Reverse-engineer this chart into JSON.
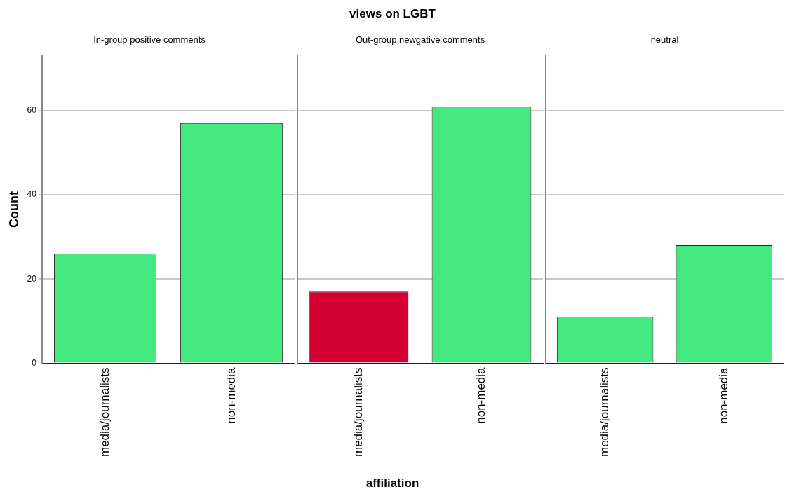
{
  "chart_data": [
    {
      "type": "bar",
      "subtitle": "In-group positive comments",
      "ylabel": "Count",
      "categories": [
        "media/journalists",
        "non-media"
      ],
      "values": [
        26,
        57
      ],
      "colors": [
        "#43e97e",
        "#43e97e"
      ],
      "ylim": [
        0,
        73
      ],
      "yticks": [
        0,
        20,
        40,
        60
      ],
      "grid": "y",
      "legend": false
    },
    {
      "type": "bar",
      "title": "views on LGBT",
      "subtitle": "Out-group newgative comments",
      "xlabel": "affiliation",
      "categories": [
        "media/journalists",
        "non-media"
      ],
      "values": [
        17,
        61
      ],
      "colors": [
        "#d50032",
        "#43e97e"
      ],
      "ylim": [
        0,
        73
      ],
      "yticks": [
        0,
        20,
        40,
        60
      ],
      "grid": "y",
      "legend": false,
      "tick_labels": "x"
    },
    {
      "type": "bar",
      "subtitle": "neutral",
      "categories": [
        "media/journalists",
        "non-media"
      ],
      "values": [
        11,
        28
      ],
      "colors": [
        "#43e97e",
        "#43e97e"
      ],
      "ylim": [
        0,
        73
      ],
      "yticks": [
        0,
        20,
        40,
        60
      ],
      "grid": "y",
      "legend": false,
      "tick_labels": "x"
    }
  ]
}
